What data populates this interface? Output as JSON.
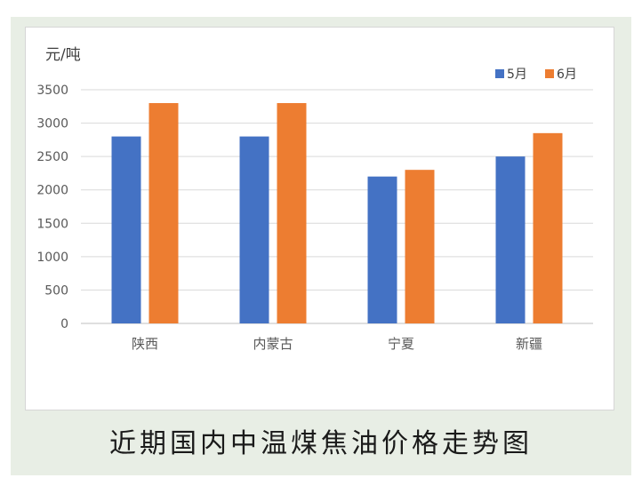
{
  "caption": "近期国内中温煤焦油价格走势图",
  "chart_data": {
    "type": "bar",
    "title": "",
    "unit_label": "元/吨",
    "xlabel": "",
    "ylabel": "元/吨",
    "categories": [
      "陕西",
      "内蒙古",
      "宁夏",
      "新疆"
    ],
    "series": [
      {
        "name": "5月",
        "color": "#4472c4",
        "values": [
          2800,
          2800,
          2200,
          2500
        ]
      },
      {
        "name": "6月",
        "color": "#ed7d31",
        "values": [
          3300,
          3300,
          2300,
          2850
        ]
      }
    ],
    "ylim": [
      0,
      3500
    ],
    "yticks": [
      0,
      500,
      1000,
      1500,
      2000,
      2500,
      3000,
      3500
    ],
    "grid": true,
    "legend_position": "top-right"
  }
}
